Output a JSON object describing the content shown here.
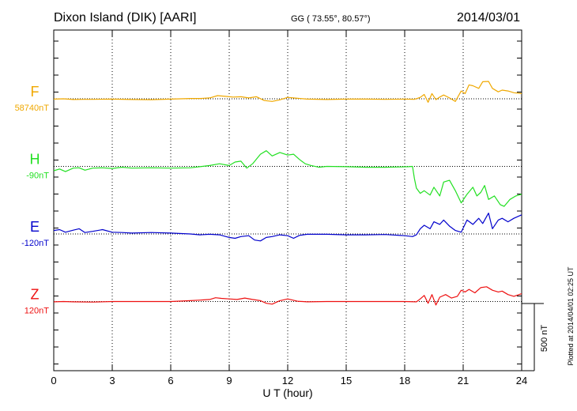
{
  "header": {
    "station": "Dixon Island (DIK)  [AARI]",
    "coords": "GG ( 73.55°,  80.57°)",
    "date": "2014/03/01"
  },
  "footer": {
    "plotted": "Plotted at 2014/04/01 02:25 UT",
    "scale_label": "500 nT"
  },
  "chart_data": {
    "type": "line",
    "title": "Dixon Island (DIK)  [AARI]",
    "xlabel": "U T (hour)",
    "ylabel": "",
    "xlim": [
      0,
      24
    ],
    "xticks": [
      0,
      3,
      6,
      9,
      12,
      15,
      18,
      21,
      24
    ],
    "xtick_labels": [
      "0",
      "3",
      "6",
      "9",
      "12",
      "15",
      "18",
      "21",
      "24"
    ],
    "units_per_trace_spacing_nT": 500,
    "scale_bar_nT": 500,
    "grid": "dotted vertical every 3 hours, dotted horizontal baseline per component",
    "series": [
      {
        "name": "F",
        "baseline_label": "58740nT",
        "color": "#f0a800",
        "offset_index": 0,
        "points": [
          [
            0,
            -2
          ],
          [
            0.5,
            0
          ],
          [
            1,
            -4
          ],
          [
            1.5,
            -3
          ],
          [
            2,
            -3
          ],
          [
            3,
            -2
          ],
          [
            4,
            -4
          ],
          [
            5,
            -5
          ],
          [
            6,
            -2
          ],
          [
            7,
            2
          ],
          [
            7.5,
            2
          ],
          [
            8,
            5
          ],
          [
            8.4,
            18
          ],
          [
            8.8,
            14
          ],
          [
            9.2,
            10
          ],
          [
            9.6,
            12
          ],
          [
            10,
            5
          ],
          [
            10.4,
            12
          ],
          [
            10.8,
            -10
          ],
          [
            11.2,
            -15
          ],
          [
            11.6,
            -6
          ],
          [
            12,
            8
          ],
          [
            12.4,
            4
          ],
          [
            13,
            -2
          ],
          [
            14,
            -4
          ],
          [
            15,
            -2
          ],
          [
            16,
            -2
          ],
          [
            17,
            -3
          ],
          [
            18,
            -2
          ],
          [
            18.5,
            -3
          ],
          [
            18.8,
            8
          ],
          [
            19,
            25
          ],
          [
            19.2,
            -20
          ],
          [
            19.4,
            30
          ],
          [
            19.6,
            -5
          ],
          [
            19.8,
            10
          ],
          [
            20,
            22
          ],
          [
            20.3,
            5
          ],
          [
            20.6,
            -15
          ],
          [
            20.9,
            45
          ],
          [
            21.1,
            30
          ],
          [
            21.3,
            80
          ],
          [
            21.5,
            75
          ],
          [
            21.8,
            60
          ],
          [
            22,
            98
          ],
          [
            22.3,
            100
          ],
          [
            22.5,
            60
          ],
          [
            22.8,
            40
          ],
          [
            23,
            50
          ],
          [
            23.3,
            45
          ],
          [
            23.6,
            35
          ],
          [
            24,
            30
          ]
        ]
      },
      {
        "name": "H",
        "baseline_label": "-90nT",
        "color": "#22e022",
        "offset_index": 1,
        "points": [
          [
            0,
            -25
          ],
          [
            0.3,
            -15
          ],
          [
            0.6,
            -30
          ],
          [
            1,
            -10
          ],
          [
            1.3,
            -8
          ],
          [
            1.6,
            -22
          ],
          [
            2,
            -10
          ],
          [
            2.5,
            -8
          ],
          [
            3,
            -12
          ],
          [
            3.5,
            -5
          ],
          [
            4,
            -10
          ],
          [
            5,
            -8
          ],
          [
            6,
            -10
          ],
          [
            7,
            -8
          ],
          [
            8,
            5
          ],
          [
            8.5,
            15
          ],
          [
            9,
            5
          ],
          [
            9.3,
            25
          ],
          [
            9.6,
            30
          ],
          [
            9.9,
            -10
          ],
          [
            10.2,
            15
          ],
          [
            10.6,
            70
          ],
          [
            10.9,
            90
          ],
          [
            11.2,
            60
          ],
          [
            11.6,
            80
          ],
          [
            12,
            65
          ],
          [
            12.3,
            70
          ],
          [
            12.6,
            40
          ],
          [
            12.9,
            15
          ],
          [
            13.2,
            5
          ],
          [
            13.6,
            -5
          ],
          [
            14,
            0
          ],
          [
            15,
            -2
          ],
          [
            16,
            -5
          ],
          [
            17,
            -5
          ],
          [
            17.8,
            -3
          ],
          [
            18.2,
            -2
          ],
          [
            18.4,
            0
          ],
          [
            18.5,
            -70
          ],
          [
            18.6,
            -125
          ],
          [
            18.8,
            -155
          ],
          [
            19,
            -140
          ],
          [
            19.3,
            -165
          ],
          [
            19.5,
            -120
          ],
          [
            19.8,
            -170
          ],
          [
            20,
            -90
          ],
          [
            20.3,
            -80
          ],
          [
            20.6,
            -140
          ],
          [
            20.9,
            -210
          ],
          [
            21.2,
            -160
          ],
          [
            21.5,
            -120
          ],
          [
            21.7,
            -170
          ],
          [
            21.9,
            -150
          ],
          [
            22.1,
            -110
          ],
          [
            22.3,
            -190
          ],
          [
            22.6,
            -170
          ],
          [
            22.9,
            -220
          ],
          [
            23.1,
            -230
          ],
          [
            23.4,
            -190
          ],
          [
            23.7,
            -170
          ],
          [
            24,
            -160
          ]
        ]
      },
      {
        "name": "E",
        "baseline_label": "-120nT",
        "color": "#0000cc",
        "offset_index": 2,
        "points": [
          [
            0,
            20
          ],
          [
            0.3,
            25
          ],
          [
            0.6,
            10
          ],
          [
            1,
            22
          ],
          [
            1.3,
            30
          ],
          [
            1.6,
            8
          ],
          [
            2,
            15
          ],
          [
            2.5,
            25
          ],
          [
            3,
            10
          ],
          [
            3.5,
            8
          ],
          [
            4,
            5
          ],
          [
            5,
            8
          ],
          [
            6,
            5
          ],
          [
            7,
            0
          ],
          [
            7.5,
            -5
          ],
          [
            8,
            -2
          ],
          [
            8.5,
            -5
          ],
          [
            9,
            -20
          ],
          [
            9.3,
            -25
          ],
          [
            9.6,
            -15
          ],
          [
            10,
            -10
          ],
          [
            10.3,
            -35
          ],
          [
            10.6,
            -40
          ],
          [
            10.9,
            -20
          ],
          [
            11.2,
            -15
          ],
          [
            11.6,
            -5
          ],
          [
            12,
            -10
          ],
          [
            12.3,
            -25
          ],
          [
            12.6,
            -8
          ],
          [
            13,
            -2
          ],
          [
            14,
            -2
          ],
          [
            15,
            -5
          ],
          [
            16,
            -5
          ],
          [
            17,
            -3
          ],
          [
            18,
            -10
          ],
          [
            18.4,
            -15
          ],
          [
            18.6,
            -5
          ],
          [
            18.8,
            30
          ],
          [
            19,
            50
          ],
          [
            19.3,
            30
          ],
          [
            19.5,
            70
          ],
          [
            19.8,
            55
          ],
          [
            20,
            80
          ],
          [
            20.3,
            45
          ],
          [
            20.6,
            20
          ],
          [
            20.9,
            10
          ],
          [
            21.2,
            80
          ],
          [
            21.5,
            55
          ],
          [
            21.8,
            90
          ],
          [
            22,
            60
          ],
          [
            22.3,
            120
          ],
          [
            22.5,
            30
          ],
          [
            22.8,
            80
          ],
          [
            23,
            90
          ],
          [
            23.3,
            70
          ],
          [
            23.6,
            90
          ],
          [
            24,
            110
          ]
        ]
      },
      {
        "name": "Z",
        "baseline_label": "120nT",
        "color": "#ee1111",
        "offset_index": 3,
        "points": [
          [
            0,
            -2
          ],
          [
            0.5,
            0
          ],
          [
            1,
            -2
          ],
          [
            2,
            -3
          ],
          [
            3,
            0
          ],
          [
            4,
            0
          ],
          [
            5,
            0
          ],
          [
            6,
            0
          ],
          [
            7,
            5
          ],
          [
            7.5,
            8
          ],
          [
            8,
            12
          ],
          [
            8.3,
            22
          ],
          [
            8.6,
            18
          ],
          [
            9,
            15
          ],
          [
            9.4,
            12
          ],
          [
            9.8,
            20
          ],
          [
            10.2,
            12
          ],
          [
            10.6,
            5
          ],
          [
            10.9,
            -10
          ],
          [
            11.2,
            -15
          ],
          [
            11.6,
            5
          ],
          [
            12,
            15
          ],
          [
            12.5,
            2
          ],
          [
            13,
            -2
          ],
          [
            14,
            0
          ],
          [
            15,
            0
          ],
          [
            16,
            0
          ],
          [
            17,
            0
          ],
          [
            18,
            0
          ],
          [
            18.6,
            -2
          ],
          [
            18.8,
            15
          ],
          [
            19,
            35
          ],
          [
            19.2,
            -10
          ],
          [
            19.4,
            40
          ],
          [
            19.6,
            -20
          ],
          [
            19.8,
            25
          ],
          [
            20.1,
            40
          ],
          [
            20.4,
            20
          ],
          [
            20.7,
            30
          ],
          [
            20.9,
            65
          ],
          [
            21.1,
            55
          ],
          [
            21.3,
            70
          ],
          [
            21.6,
            50
          ],
          [
            21.9,
            80
          ],
          [
            22.2,
            85
          ],
          [
            22.5,
            65
          ],
          [
            22.8,
            55
          ],
          [
            23,
            60
          ],
          [
            23.3,
            40
          ],
          [
            23.6,
            30
          ],
          [
            24,
            45
          ]
        ]
      }
    ]
  }
}
